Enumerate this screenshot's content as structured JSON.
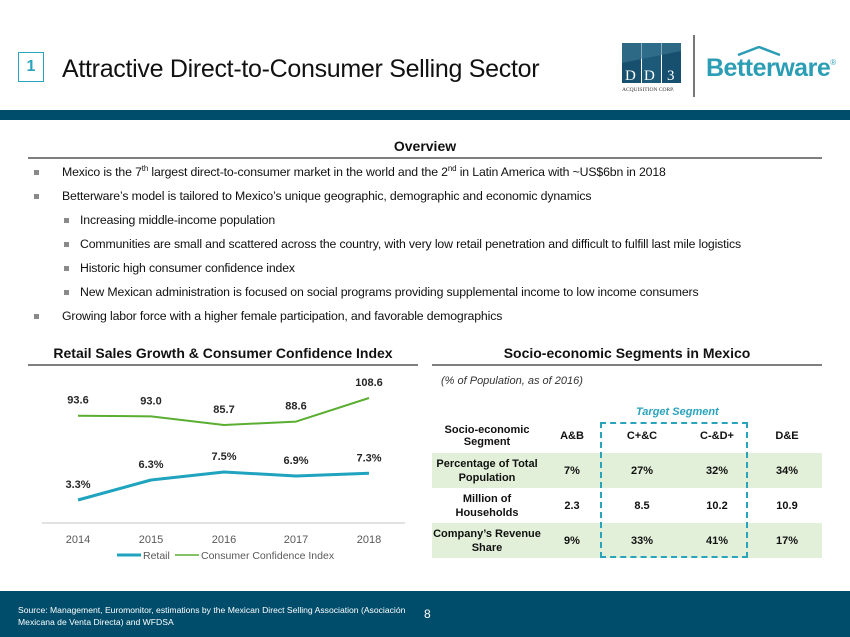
{
  "header": {
    "slide_number": "1",
    "title": "Attractive Direct-to-Consumer Selling Sector",
    "logos": {
      "dd3": {
        "text": "DD3",
        "subtext": "ACQUISITION CORP."
      },
      "betterware": {
        "text": "Betterware",
        "mark": "®"
      }
    }
  },
  "overview": {
    "title": "Overview",
    "bullets": [
      {
        "level": 1,
        "parts": [
          "Mexico is the 7",
          "th",
          " largest direct-to-consumer market in the world and the 2",
          "nd",
          " in Latin America with ~US$6bn in 2018"
        ]
      },
      {
        "level": 1,
        "text": "Betterware’s model is tailored to Mexico’s unique geographic, demographic and economic dynamics"
      },
      {
        "level": 2,
        "text": "Increasing middle-income population"
      },
      {
        "level": 2,
        "text": "Communities are small and scattered across the country, with very low retail penetration and difficult to fulfill last mile logistics"
      },
      {
        "level": 2,
        "text": "Historic high consumer confidence index"
      },
      {
        "level": 2,
        "text": "New Mexican administration is focused on social programs providing supplemental income to low income consumers"
      },
      {
        "level": 1,
        "text": "Growing labor force with a higher female participation, and favorable demographics"
      }
    ]
  },
  "chart_data": {
    "type": "line",
    "title": "Retail Sales Growth & Consumer Confidence Index",
    "xlabel": "",
    "ylabel": "",
    "categories": [
      "2014",
      "2015",
      "2016",
      "2017",
      "2018"
    ],
    "series": [
      {
        "name": "Retail",
        "color": "#1fa3bf",
        "values": [
          3.3,
          6.3,
          7.5,
          6.9,
          7.3
        ],
        "labels": [
          "3.3%",
          "6.3%",
          "7.5%",
          "6.9%",
          "7.3%"
        ]
      },
      {
        "name": "Consumer Confidence Index",
        "color": "#5aae32",
        "values": [
          93.6,
          93.0,
          85.7,
          88.6,
          108.6
        ],
        "labels": [
          "93.6",
          "93.0",
          "85.7",
          "88.6",
          "108.6"
        ]
      }
    ],
    "legend_position": "bottom",
    "grid": false
  },
  "segments": {
    "title": "Socio-economic Segments in Mexico",
    "subtitle": "(% of Population, as of 2016)",
    "target_label": "Target Segment",
    "target_columns": [
      "C+&C",
      "C-&D+"
    ],
    "columns": [
      "Socio-economic Segment",
      "A&B",
      "C+&C",
      "C-&D+",
      "D&E"
    ],
    "rows": [
      {
        "label": "Percentage of Total Population",
        "values": [
          "7%",
          "27%",
          "32%",
          "34%"
        ]
      },
      {
        "label": "Million of Households",
        "values": [
          "2.3",
          "8.5",
          "10.2",
          "10.9"
        ]
      },
      {
        "label": "Company’s Revenue Share",
        "values": [
          "9%",
          "33%",
          "41%",
          "17%"
        ]
      }
    ]
  },
  "footer": {
    "source": "Source: Management,  Euromonitor, estimations by the Mexican Direct Selling Association (Asociación Mexicana de Venta Directa) and WFDSA",
    "page": "8"
  },
  "colors": {
    "brand_dark": "#004d6b",
    "accent_teal": "#2aa3bd",
    "retail_line": "#1fa3bf",
    "confidence_line": "#5aae32",
    "table_shade": "#e2f0d9"
  }
}
